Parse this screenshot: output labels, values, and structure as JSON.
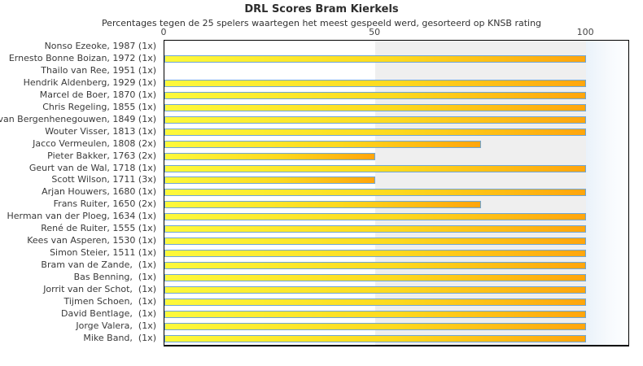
{
  "title": "DRL Scores Bram Kierkels",
  "subtitle": "Percentages tegen de 25 spelers waartegen het meest gespeeld werd, gesorteerd op KNSB rating",
  "colors": {
    "bar_fill_left": "#fdf93b",
    "bar_fill_right": "#ffa50d",
    "bar_border": "#6fa6d6",
    "band_50_100": "#efefef",
    "overflow_band": "#eaf2fa",
    "plot_border": "#000000",
    "text": "#3a3a3a"
  },
  "chart_data": {
    "type": "bar",
    "orientation": "horizontal",
    "title": "DRL Scores Bram Kierkels",
    "subtitle": "Percentages tegen de 25 spelers waartegen het meest gespeeld werd, gesorteerd op KNSB rating",
    "xlabel": "",
    "ylabel": "",
    "xlim": [
      0,
      110
    ],
    "xticks": [
      0,
      50,
      100
    ],
    "grid": false,
    "legend": false,
    "background_bands": [
      {
        "from": 0,
        "to": 50,
        "color": "#ffffff"
      },
      {
        "from": 50,
        "to": 100,
        "color": "#efefef"
      },
      {
        "from": 100,
        "to": 110,
        "color": "#eaf2fa"
      }
    ],
    "categories": [
      "Nonso Ezeoke, 1987 (1x)",
      "Ernesto Bonne Boizan, 1972 (1x)",
      "Thailo van Ree, 1951 (1x)",
      "Hendrik Aldenberg, 1929 (1x)",
      "Marcel de Boer, 1870 (1x)",
      "Chris Regeling, 1855 (1x)",
      "van Bergenhenegouwen, 1849 (1x)",
      "Wouter Visser, 1813 (1x)",
      "Jacco Vermeulen, 1808 (2x)",
      "Pieter Bakker, 1763 (2x)",
      "Geurt van de Wal, 1718 (1x)",
      "Scott Wilson, 1711 (3x)",
      "Arjan Houwers, 1680 (1x)",
      "Frans Ruiter, 1650 (2x)",
      "Herman van der Ploeg, 1634 (1x)",
      "René de Ruiter, 1555 (1x)",
      "Kees van Asperen, 1530 (1x)",
      "Simon Steier, 1511 (1x)",
      "Bram van de Zande,  (1x)",
      "Bas Benning,  (1x)",
      "Jorrit van der Schot,  (1x)",
      "Tijmen Schoen,  (1x)",
      "David Bentlage,  (1x)",
      "Jorge Valera,  (1x)",
      "Mike Band,  (1x)"
    ],
    "values": [
      0,
      100,
      0,
      100,
      100,
      100,
      100,
      100,
      75,
      50,
      100,
      50,
      100,
      75,
      100,
      100,
      100,
      100,
      100,
      100,
      100,
      100,
      100,
      100,
      100
    ]
  }
}
